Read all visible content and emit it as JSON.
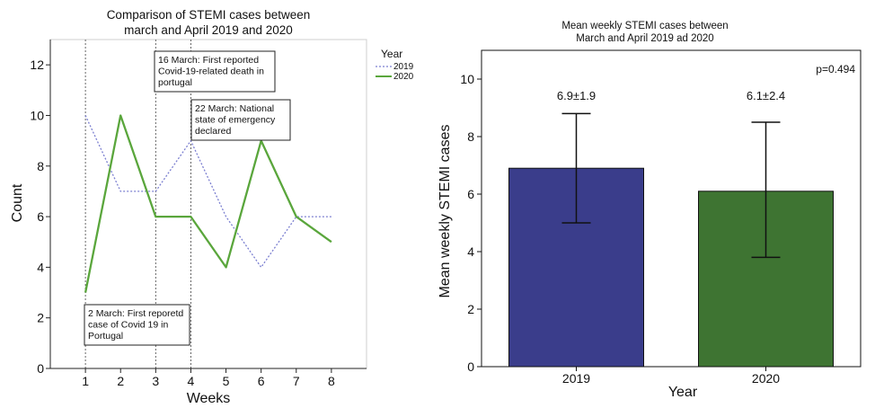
{
  "chart_data": [
    {
      "type": "line",
      "title_lines": [
        "Comparison of STEMI cases between",
        "march and April 2019 and 2020"
      ],
      "xlabel": "Weeks",
      "ylabel": "Count",
      "x": [
        1,
        2,
        3,
        4,
        5,
        6,
        7,
        8
      ],
      "xlim": [
        0,
        9
      ],
      "ylim": [
        0,
        13
      ],
      "yticks": [
        0,
        2,
        4,
        6,
        8,
        10,
        12
      ],
      "legend_title": "Year",
      "legend_position": "top-right",
      "series": [
        {
          "name": "2019",
          "values": [
            10,
            7,
            7,
            9,
            6,
            4,
            6,
            6
          ],
          "color": "#7b7fd0",
          "style": "dotted"
        },
        {
          "name": "2020",
          "values": [
            3,
            10,
            6,
            6,
            4,
            9,
            6,
            5
          ],
          "color": "#5aa63c",
          "style": "solid"
        }
      ],
      "markers": [
        {
          "x": 1,
          "text": [
            "2 March: First reporetd",
            "case of Covid 19 in",
            "Portugal"
          ]
        },
        {
          "x": 3,
          "text": [
            "16 March: First reported",
            "Covid-19-related death in",
            "portugal"
          ]
        },
        {
          "x": 4,
          "text": [
            "22 March: National",
            "state of emergency",
            "declared"
          ]
        }
      ]
    },
    {
      "type": "bar",
      "title_lines": [
        "Mean weekly STEMI cases between",
        "March and April 2019 ad 2020"
      ],
      "xlabel": "Year",
      "ylabel": "Mean weekly STEMI cases",
      "categories": [
        "2019",
        "2020"
      ],
      "values": [
        6.9,
        6.1
      ],
      "error_bars": [
        [
          5.0,
          8.8
        ],
        [
          3.8,
          8.5
        ]
      ],
      "value_labels": [
        "6.9±1.9",
        "6.1±2.4"
      ],
      "colors": [
        "#3a3d8b",
        "#3e7432"
      ],
      "ylim": [
        0,
        11
      ],
      "yticks": [
        0,
        2,
        4,
        6,
        8,
        10
      ],
      "annotation": "p=0.494"
    }
  ]
}
